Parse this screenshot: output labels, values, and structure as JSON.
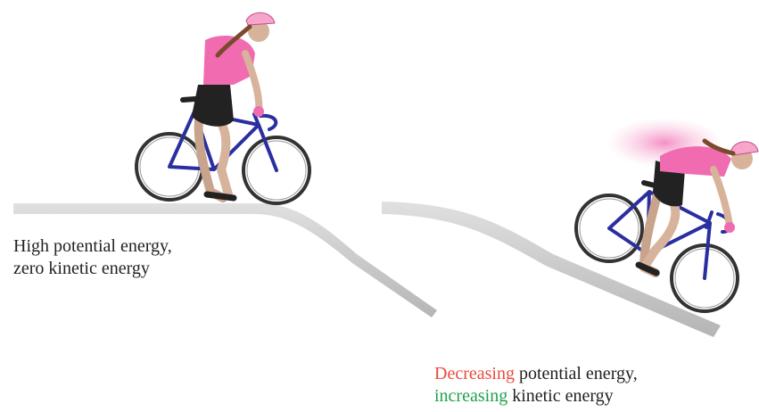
{
  "left": {
    "caption": [
      "High potential energy,",
      "zero kinetic energy"
    ]
  },
  "right": {
    "caption": [
      {
        "highlight": "Decreasing",
        "rest": "potential energy,"
      },
      {
        "highlight": "increasing",
        "rest": "kinetic energy"
      }
    ]
  }
}
